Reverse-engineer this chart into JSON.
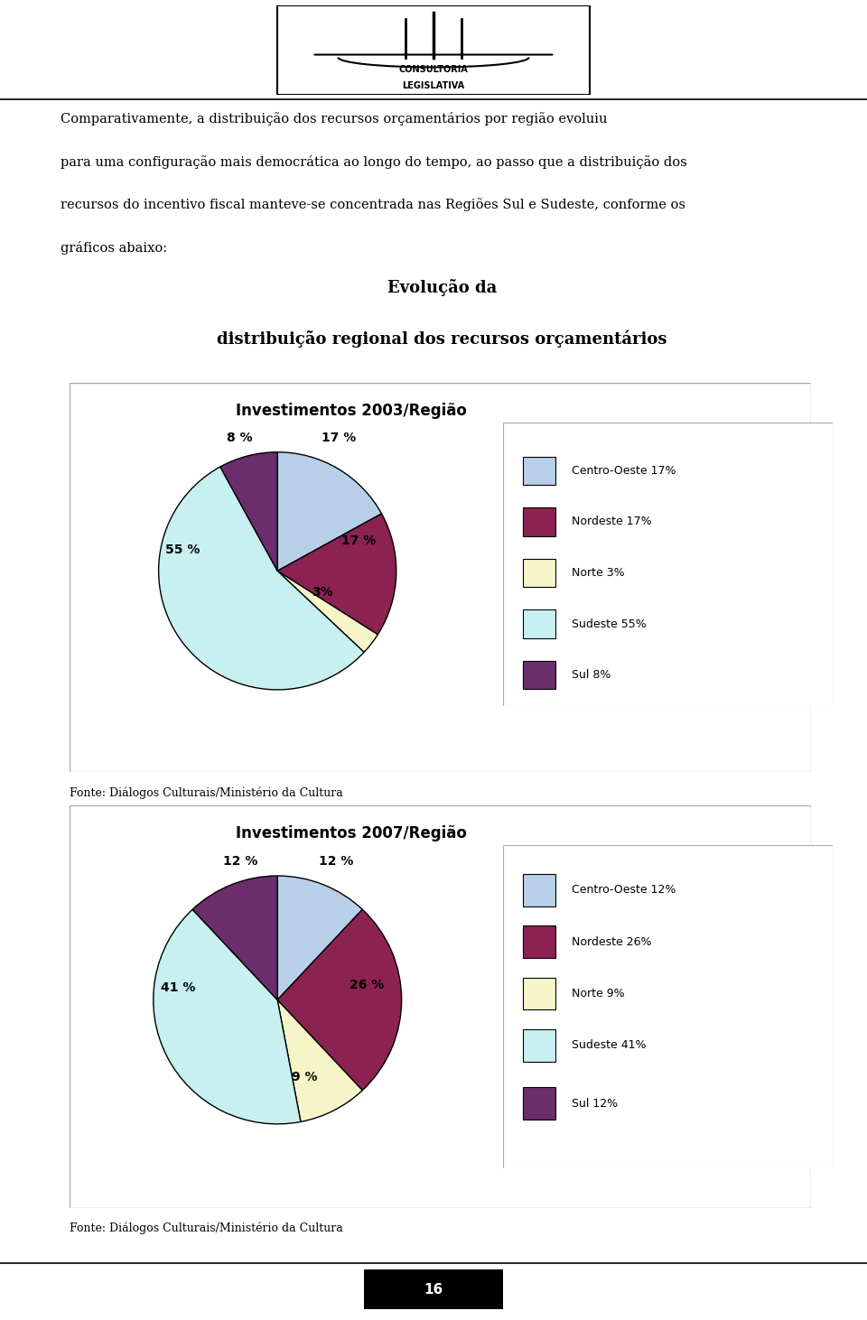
{
  "page_bg": "#ffffff",
  "header_text_lines": [
    "Comparativamente, a distribuição dos recursos orçamentários por região evoluiu",
    "para uma configuração mais democrática ao longo do tempo, ao passo que a distribuição dos",
    "recursos do incentivo fiscal manteve-se concentrada nas Regiões Sul e Sudeste, conforme os",
    "gráficos abaixo:"
  ],
  "section_title_line1": "Evolução da",
  "section_title_line2": "distribuição regional dos recursos orçamentários",
  "chart1_title": "Investimentos 2003/Região",
  "chart1_values": [
    17,
    17,
    3,
    55,
    8
  ],
  "chart1_labels": [
    "Centro-Oeste 17%",
    "Nordeste 17%",
    "Norte 3%",
    "Sudeste 55%",
    "Sul 8%"
  ],
  "chart1_pct_labels": [
    "17 %",
    "17 %",
    "3%",
    "55 %",
    "8 %"
  ],
  "chart1_colors": [
    "#b8cfe8",
    "#8b2252",
    "#f5f5c8",
    "#c8f0f0",
    "#6b2d6b"
  ],
  "chart1_fonte": "Fonte: Diálogos Culturais/Ministério da Cultura",
  "chart2_title": "Investimentos 2007/Região",
  "chart2_values": [
    12,
    26,
    9,
    41,
    12
  ],
  "chart2_labels": [
    "Centro-Oeste 12%",
    "Nordeste 26%",
    "Norte 9%",
    "Sudeste 41%",
    "Sul 12%"
  ],
  "chart2_pct_labels": [
    "12 %",
    "26 %",
    "9 %",
    "41 %",
    "12 %"
  ],
  "chart2_colors": [
    "#b8cfe8",
    "#8b2252",
    "#f5f5c8",
    "#c8f0f0",
    "#6b2d6b"
  ],
  "chart2_fonte": "Fonte: Diálogos Culturais/Ministério da Cultura",
  "page_number": "16",
  "logo_text1": "CONSULTORIA",
  "logo_text2": "LEGISLATIVA"
}
